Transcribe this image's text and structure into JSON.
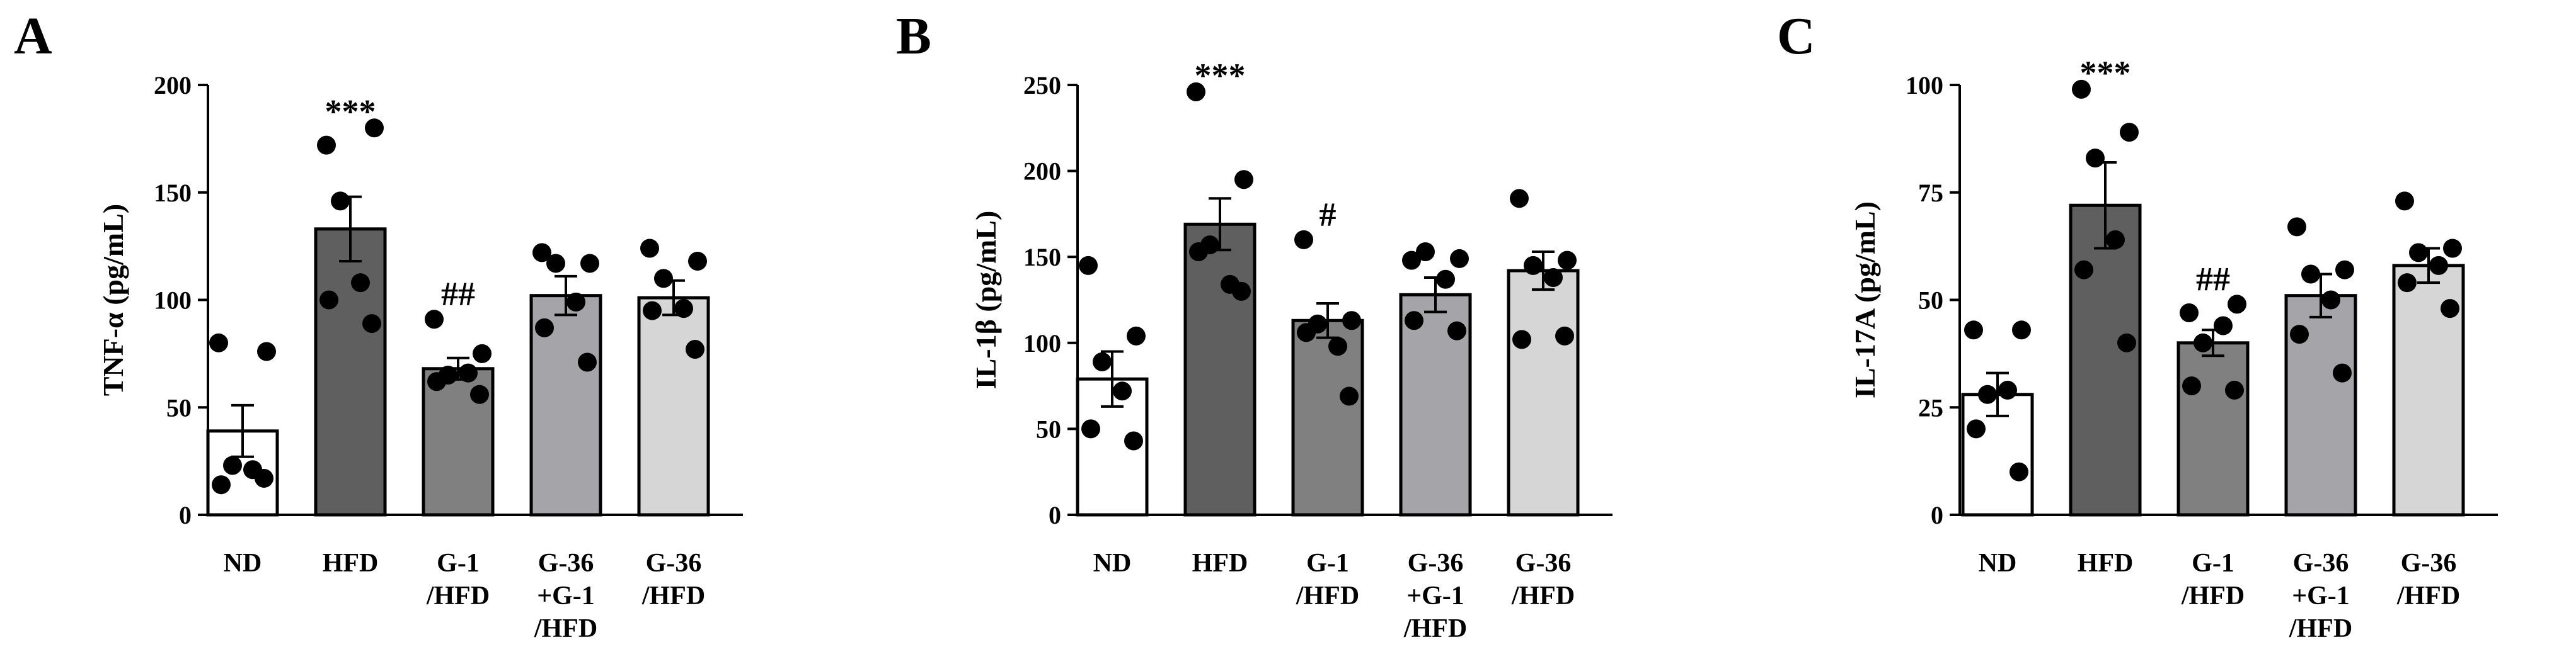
{
  "colors": {
    "axis": "#000000",
    "ND": "#ffffff",
    "HFD": "#5f5f5f",
    "G-1/HFD": "#808080",
    "G-36+G-1/HFD": "#a5a5a9",
    "G-36/HFD": "#d6d6d6",
    "point": "#000000"
  },
  "chart_data": [
    {
      "panel": "A",
      "type": "bar",
      "ylabel": "TNF-α (pg/mL)",
      "ylim": [
        0,
        200
      ],
      "yticks": [
        0,
        50,
        100,
        150,
        200
      ],
      "categories": [
        {
          "lines": [
            "ND"
          ],
          "key": "ND"
        },
        {
          "lines": [
            "HFD"
          ],
          "key": "HFD"
        },
        {
          "lines": [
            "G-1",
            "/HFD"
          ],
          "key": "G-1/HFD"
        },
        {
          "lines": [
            "G-36",
            "+G-1",
            "/HFD"
          ],
          "key": "G-36+G-1/HFD"
        },
        {
          "lines": [
            "G-36",
            "/HFD"
          ],
          "key": "G-36/HFD"
        }
      ],
      "means": [
        39,
        133,
        68,
        102,
        101
      ],
      "sem": [
        12,
        15,
        5,
        9,
        8
      ],
      "points": [
        [
          80,
          76,
          23,
          21,
          14,
          17
        ],
        [
          172,
          180,
          146,
          108,
          100,
          89
        ],
        [
          91,
          75,
          65,
          66,
          62,
          56
        ],
        [
          122,
          117,
          117,
          99,
          87,
          71
        ],
        [
          124,
          118,
          110,
          96,
          95,
          77
        ]
      ],
      "annotations": [
        "",
        "***",
        "##",
        "",
        ""
      ]
    },
    {
      "panel": "B",
      "type": "bar",
      "ylabel": "IL-1β (pg/mL)",
      "ylim": [
        0,
        250
      ],
      "yticks": [
        0,
        50,
        100,
        150,
        200,
        250
      ],
      "categories": [
        {
          "lines": [
            "ND"
          ],
          "key": "ND"
        },
        {
          "lines": [
            "HFD"
          ],
          "key": "HFD"
        },
        {
          "lines": [
            "G-1",
            "/HFD"
          ],
          "key": "G-1/HFD"
        },
        {
          "lines": [
            "G-36",
            "+G-1",
            "/HFD"
          ],
          "key": "G-36+G-1/HFD"
        },
        {
          "lines": [
            "G-36",
            "/HFD"
          ],
          "key": "G-36/HFD"
        }
      ],
      "means": [
        79,
        169,
        113,
        128,
        142
      ],
      "sem": [
        16,
        15,
        10,
        10,
        11
      ],
      "points": [
        [
          145,
          104,
          89,
          72,
          50,
          43
        ],
        [
          246,
          195,
          157,
          134,
          153,
          130
        ],
        [
          160,
          113,
          111,
          98,
          106,
          69
        ],
        [
          148,
          149,
          153,
          137,
          113,
          107
        ],
        [
          184,
          148,
          145,
          138,
          102,
          104
        ]
      ],
      "annotations": [
        "",
        "***",
        "#",
        "",
        ""
      ]
    },
    {
      "panel": "C",
      "type": "bar",
      "ylabel": "IL-17A (pg/mL)",
      "ylim": [
        0,
        100
      ],
      "yticks": [
        0,
        25,
        50,
        75,
        100
      ],
      "categories": [
        {
          "lines": [
            "ND"
          ],
          "key": "ND"
        },
        {
          "lines": [
            "HFD"
          ],
          "key": "HFD"
        },
        {
          "lines": [
            "G-1",
            "/HFD"
          ],
          "key": "G-1/HFD"
        },
        {
          "lines": [
            "G-36",
            "+G-1",
            "/HFD"
          ],
          "key": "G-36+G-1/HFD"
        },
        {
          "lines": [
            "G-36",
            "/HFD"
          ],
          "key": "G-36/HFD"
        }
      ],
      "means": [
        28,
        72,
        40,
        51,
        58
      ],
      "sem": [
        5,
        10,
        3,
        5,
        4
      ],
      "points": [
        [
          43,
          43,
          28,
          29,
          20,
          10
        ],
        [
          99,
          89,
          83,
          64,
          57,
          40
        ],
        [
          47,
          49,
          40,
          44,
          30,
          29
        ],
        [
          67,
          57,
          56,
          50,
          42,
          33
        ],
        [
          73,
          62,
          61,
          58,
          54,
          48
        ]
      ],
      "annotations": [
        "",
        "***",
        "##",
        "",
        ""
      ]
    }
  ]
}
